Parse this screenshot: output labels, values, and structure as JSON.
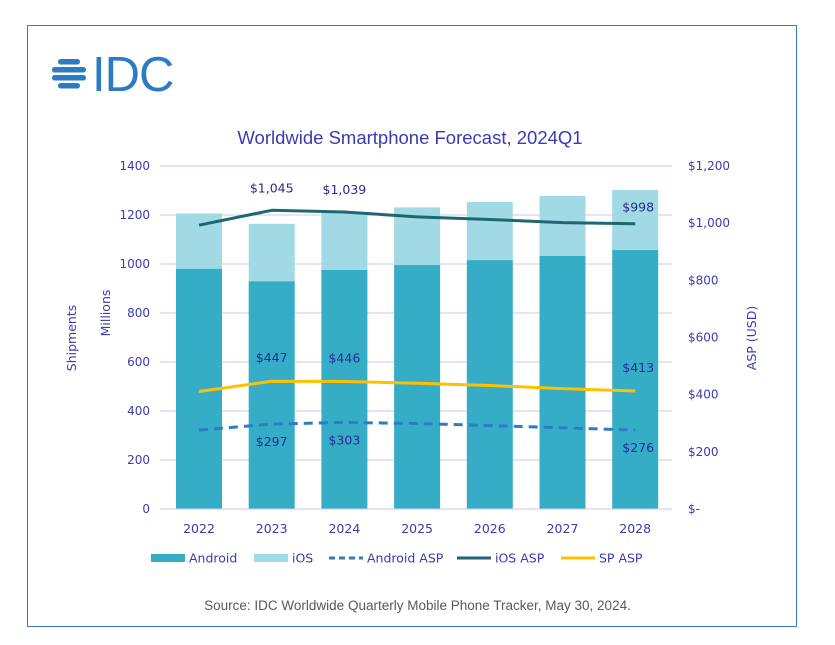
{
  "logo": {
    "text": "IDC",
    "icon": "idc-globe-icon",
    "color": "#2b7cc0"
  },
  "source": "Source:  IDC Worldwide Quarterly Mobile Phone Tracker, May 30, 2024.",
  "colors": {
    "android": "#36adc7",
    "ios": "#a1d9e4",
    "android_asp": "#2f7dbf",
    "ios_asp": "#1f6673",
    "sp_asp": "#ffc000",
    "axis_text": "#3b3bb0",
    "grid": "#c9c9f0",
    "label_text": "#2b2b8f"
  },
  "chart_data": {
    "type": "bar",
    "stacked": true,
    "title": "Worldwide Smartphone Forecast, 2024Q1",
    "categories": [
      "2022",
      "2023",
      "2024",
      "2025",
      "2026",
      "2027",
      "2028"
    ],
    "ylabel": "Shipments",
    "ylabel_secondary": "Millions",
    "y2label": "ASP (USD)",
    "ylim": [
      0,
      1400
    ],
    "yticks": [
      "0",
      "200",
      "400",
      "600",
      "800",
      "1000",
      "1200",
      "1400"
    ],
    "y2lim": [
      0,
      1200
    ],
    "y2ticks": [
      "$-",
      "$200",
      "$400",
      "$600",
      "$800",
      "$1,000",
      "$1,200"
    ],
    "grid": true,
    "legend_position": "bottom",
    "series": [
      {
        "name": "Android",
        "kind": "bar",
        "axis": "left",
        "values": [
          981,
          930,
          976,
          996,
          1016,
          1033,
          1057
        ]
      },
      {
        "name": "iOS",
        "kind": "bar",
        "axis": "left",
        "values": [
          225,
          234,
          234,
          235,
          237,
          245,
          245
        ]
      },
      {
        "name": "Android ASP",
        "kind": "line-dashed",
        "axis": "right",
        "values": [
          276,
          297,
          303,
          299,
          292,
          284,
          276
        ]
      },
      {
        "name": "iOS ASP",
        "kind": "line",
        "axis": "right",
        "values": [
          993,
          1045,
          1039,
          1022,
          1013,
          1002,
          998
        ]
      },
      {
        "name": "SP ASP",
        "kind": "line",
        "axis": "right",
        "values": [
          411,
          447,
          446,
          440,
          432,
          421,
          413
        ]
      }
    ],
    "annotations": [
      {
        "series": "iOS ASP",
        "category": "2023",
        "text": "$1,045"
      },
      {
        "series": "iOS ASP",
        "category": "2024",
        "text": "$1,039"
      },
      {
        "series": "iOS ASP",
        "category": "2028",
        "text": "$998"
      },
      {
        "series": "SP ASP",
        "category": "2023",
        "text": "$447"
      },
      {
        "series": "SP ASP",
        "category": "2024",
        "text": "$446"
      },
      {
        "series": "SP ASP",
        "category": "2028",
        "text": "$413"
      },
      {
        "series": "Android ASP",
        "category": "2023",
        "text": "$297"
      },
      {
        "series": "Android ASP",
        "category": "2024",
        "text": "$303"
      },
      {
        "series": "Android ASP",
        "category": "2028",
        "text": "$276"
      }
    ]
  }
}
